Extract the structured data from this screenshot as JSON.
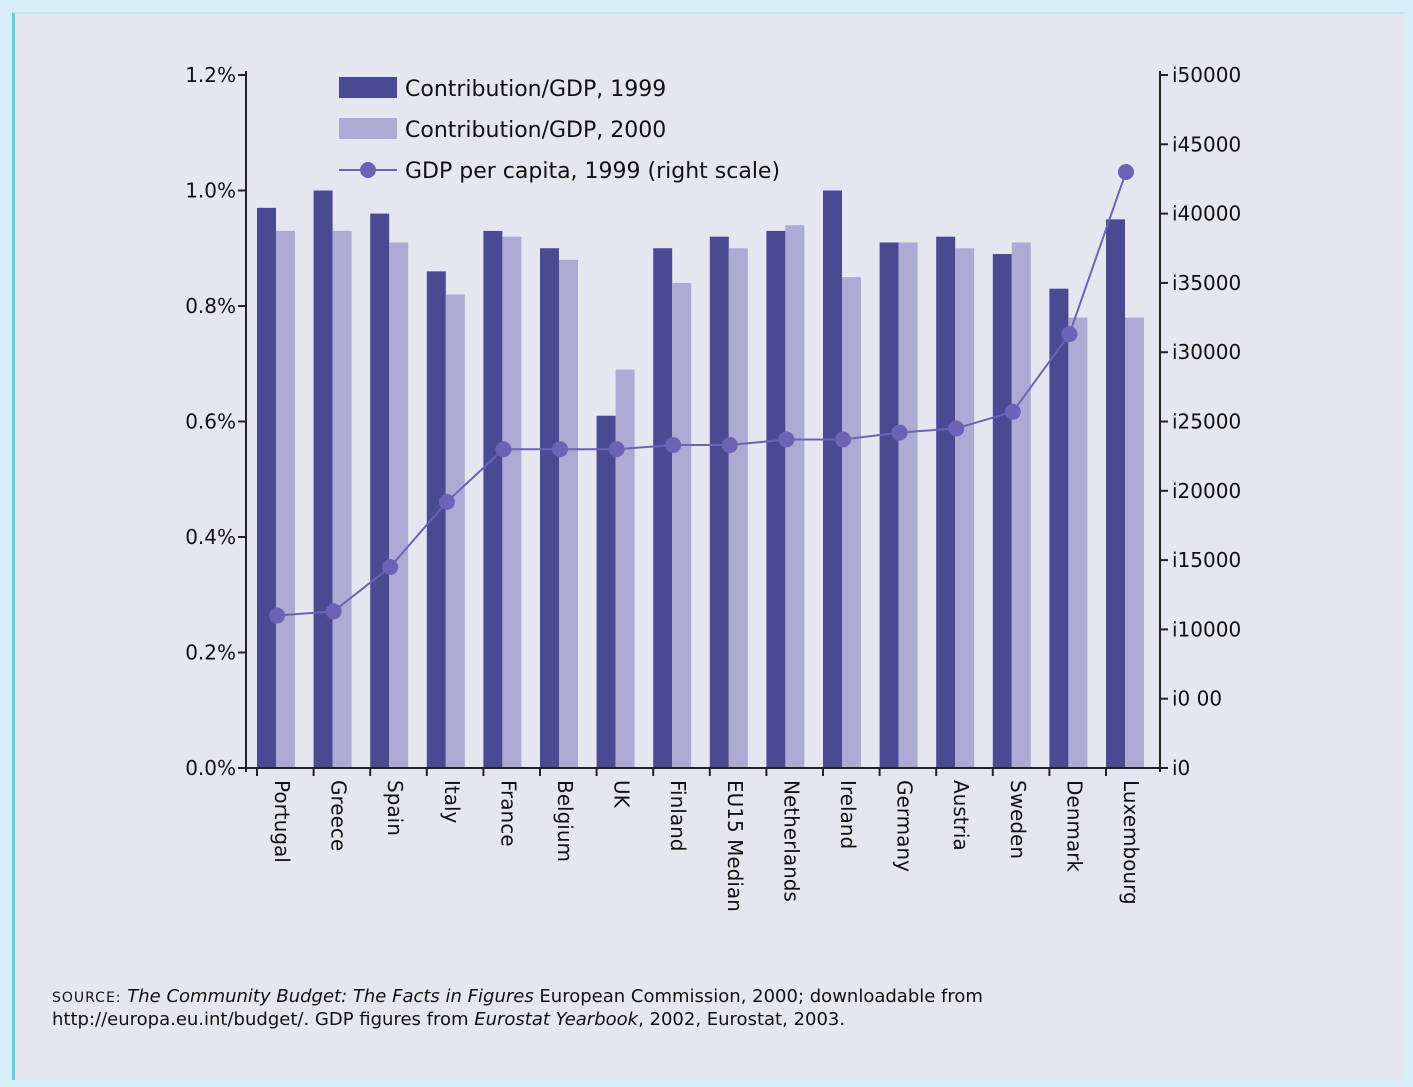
{
  "chart_data": {
    "type": "bar",
    "categories": [
      "Portugal",
      "Greece",
      "Spain",
      "Italy",
      "France",
      "Belgium",
      "UK",
      "Finland",
      "EU15 Median",
      "Netherlands",
      "Ireland",
      "Germany",
      "Austria",
      "Sweden",
      "Denmark",
      "Luxembourg"
    ],
    "series": [
      {
        "name": "Contribution/GDP, 1999",
        "axis": "left",
        "type": "bar",
        "color": "#4a4a93",
        "values": [
          0.97,
          1.0,
          0.96,
          0.86,
          0.93,
          0.9,
          0.61,
          0.9,
          0.92,
          0.93,
          1.0,
          0.91,
          0.92,
          0.89,
          0.83,
          0.95
        ]
      },
      {
        "name": "Contribution/GDP, 2000",
        "axis": "left",
        "type": "bar",
        "color": "#ababd3",
        "values": [
          0.93,
          0.93,
          0.91,
          0.82,
          0.92,
          0.88,
          0.69,
          0.84,
          0.9,
          0.94,
          0.85,
          0.91,
          0.9,
          0.91,
          0.78,
          0.78
        ]
      },
      {
        "name": "GDP per capita, 1999 (right scale)",
        "axis": "right",
        "type": "line",
        "color": "#6b63b6",
        "values": [
          11000,
          11300,
          14500,
          19200,
          23000,
          23000,
          23000,
          23300,
          23300,
          23700,
          23700,
          24200,
          24500,
          25700,
          31300,
          43000
        ]
      }
    ],
    "ylim_left": [
      0,
      1.2
    ],
    "ylim_right": [
      0,
      50000
    ],
    "y_left_ticks": [
      "0.0%",
      "0.2%",
      "0.4%",
      "0.6%",
      "0.8%",
      "1.0%",
      "1.2%"
    ],
    "y_right_ticks": [
      "i0",
      "i0 00",
      "i10000",
      "i15000",
      "i20000",
      "i25000",
      "i30000",
      "i35000",
      "i40000",
      "i45000",
      "i50000"
    ],
    "category_labels": [
      "Portugal",
      "Greece",
      "Spain",
      "Italy",
      "France",
      "Belgium",
      "UK",
      "Finland",
      "EU15 Median",
      "Netherlands",
      "Ireland",
      "Germany",
      "Austria",
      "Sweden",
      "Denmark",
      "Luxembourg"
    ],
    "legend": [
      "Contribution/GDP, 1999",
      "Contribution/GDP, 2000",
      "GDP per capita, 1999 (right scale)"
    ],
    "legend_position": "top-left",
    "grid": false
  },
  "source": {
    "prefix": "SOURCE:",
    "title1": "The Community Budget: The Facts in Figures",
    "publisher": " European Commission, 2000; downloadable from",
    "line2_start": "http://europa.eu.int/budget/. GDP figures from ",
    "title2": "Eurostat Yearbook",
    "line2_end": ", 2002, Eurostat, 2003."
  }
}
